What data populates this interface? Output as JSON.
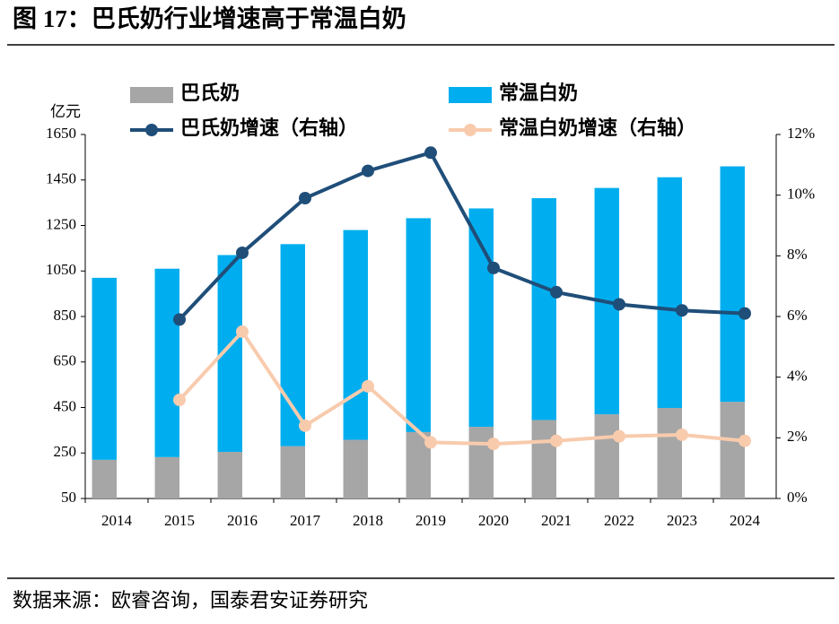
{
  "title": "图 17：巴氏奶行业增速高于常温白奶",
  "source": "数据来源：欧睿咨询，国泰君安证券研究",
  "chart_data": {
    "type": "bar",
    "stacked": true,
    "y_label": "亿元",
    "categories": [
      "2014",
      "2015",
      "2016",
      "2017",
      "2018",
      "2019",
      "2020",
      "2021",
      "2022",
      "2023",
      "2024"
    ],
    "series": [
      {
        "name": "巴氏奶",
        "type": "bar",
        "color": "#a6a6a6",
        "values": [
          220,
          232,
          255,
          280,
          308,
          342,
          365,
          395,
          420,
          448,
          475
        ]
      },
      {
        "name": "常温白奶",
        "type": "bar",
        "color": "#00aeef",
        "values": [
          800,
          828,
          865,
          888,
          922,
          940,
          960,
          975,
          995,
          1014,
          1035
        ]
      },
      {
        "name": "巴氏奶增速（右轴）",
        "type": "line",
        "axis": "y2",
        "color": "#1f4e79",
        "values": [
          null,
          5.9,
          8.1,
          9.9,
          10.8,
          11.4,
          7.6,
          6.8,
          6.4,
          6.2,
          6.1
        ]
      },
      {
        "name": "常温白奶增速（右轴）",
        "type": "line",
        "axis": "y2",
        "color": "#f8cbad",
        "values": [
          null,
          3.25,
          5.5,
          2.4,
          3.7,
          1.85,
          1.8,
          1.9,
          2.05,
          2.1,
          1.9
        ]
      }
    ],
    "ylim": [
      50,
      1650
    ],
    "yticks": [
      50,
      250,
      450,
      650,
      850,
      1050,
      1250,
      1450,
      1650
    ],
    "y2lim": [
      0,
      12
    ],
    "y2ticks": [
      {
        "value": 0,
        "label": "0%"
      },
      {
        "value": 2,
        "label": "2%"
      },
      {
        "value": 4,
        "label": "4%"
      },
      {
        "value": 6,
        "label": "6%"
      },
      {
        "value": 8,
        "label": "8%"
      },
      {
        "value": 10,
        "label": "10%"
      },
      {
        "value": 12,
        "label": "12%"
      }
    ]
  }
}
